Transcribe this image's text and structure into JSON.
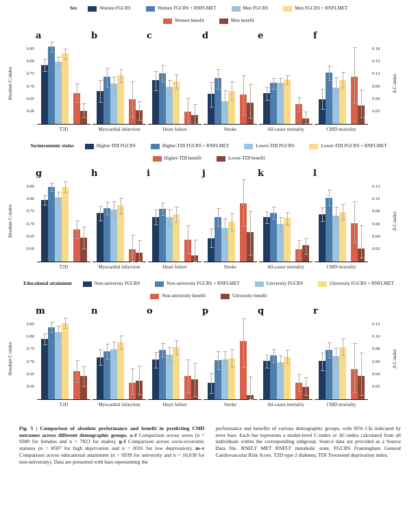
{
  "chart_data": {
    "type": "bar",
    "title": "Fig. 5 | Comparison of absolute performance and benefit in predicting CMD outcomes across different demographic groups.",
    "left_axis_range": [
      0.55,
      0.875
    ],
    "colors": {
      "series": [
        "#1e3a5f",
        "#4d7ead",
        "#9cc4de",
        "#f9db87"
      ],
      "benefit": [
        "#d9604a",
        "#8a4637"
      ],
      "error_bar": "#b3a8a3",
      "axis": "#151515"
    },
    "rows": [
      {
        "group_label": "Sex",
        "letters": [
          "a",
          "b",
          "c",
          "d",
          "e",
          "f"
        ],
        "legend_series": [
          "Women FGCRS",
          "Women FGCRS + RNFLMET",
          "Men FGCRS",
          "Men FGCRS + RNFLMET"
        ],
        "legend_benefit": [
          "Women benefit",
          "Men benefit"
        ],
        "left_axis_label": "Absolute C-index",
        "right_axis_label": "Δ C-index",
        "left_ticks": [
          0.85,
          0.8,
          0.75,
          0.7,
          0.65,
          0.6
        ],
        "right_ticks": [
          0.18,
          0.15,
          0.12,
          0.09,
          0.06,
          0.03
        ],
        "charts": [
          {
            "outcome": "T2D",
            "values": [
              0.788,
              0.86,
              0.8,
              0.833
            ],
            "ci": [
              [
                0.763,
                0.813
              ],
              [
                0.84,
                0.88
              ],
              [
                0.78,
                0.82
              ],
              [
                0.813,
                0.853
              ]
            ],
            "benefit": [
              0.075,
              0.032
            ],
            "benefit_ci": [
              [
                0.053,
                0.097
              ],
              [
                0.016,
                0.05
              ]
            ]
          },
          {
            "outcome": "Myocardial infarction",
            "values": [
              0.682,
              0.74,
              0.712,
              0.745
            ],
            "ci": [
              [
                0.637,
                0.727
              ],
              [
                0.7,
                0.777
              ],
              [
                0.683,
                0.741
              ],
              [
                0.719,
                0.771
              ]
            ],
            "benefit": [
              0.059,
              0.033
            ],
            "benefit_ci": [
              [
                0.017,
                0.103
              ],
              [
                0.01,
                0.055
              ]
            ]
          },
          {
            "outcome": "Heart failure",
            "values": [
              0.725,
              0.755,
              0.698,
              0.72
            ],
            "ci": [
              [
                0.686,
                0.762
              ],
              [
                0.721,
                0.786
              ],
              [
                0.669,
                0.727
              ],
              [
                0.691,
                0.749
              ]
            ],
            "benefit": [
              0.03,
              0.022
            ],
            "benefit_ci": [
              [
                0.002,
                0.063
              ],
              [
                0.001,
                0.048
              ]
            ]
          },
          {
            "outcome": "Stroke",
            "values": [
              0.67,
              0.735,
              0.642,
              0.683
            ],
            "ci": [
              [
                0.62,
                0.717
              ],
              [
                0.69,
                0.77
              ],
              [
                0.6,
                0.685
              ],
              [
                0.645,
                0.72
              ]
            ],
            "benefit": [
              0.071,
              0.052
            ],
            "benefit_ci": [
              [
                0.021,
                0.117
              ],
              [
                0.015,
                0.096
              ]
            ]
          },
          {
            "outcome": "All-cause mortality",
            "values": [
              0.673,
              0.715,
              0.715,
              0.73
            ],
            "ci": [
              [
                0.647,
                0.7
              ],
              [
                0.69,
                0.735
              ],
              [
                0.692,
                0.735
              ],
              [
                0.71,
                0.745
              ]
            ],
            "benefit": [
              0.048,
              0.014
            ],
            "benefit_ci": [
              [
                0.03,
                0.064
              ],
              [
                0.001,
                0.03
              ]
            ]
          },
          {
            "outcome": "CMD mortality",
            "values": [
              0.648,
              0.757,
              0.695,
              0.727
            ],
            "ci": [
              [
                0.61,
                0.69
              ],
              [
                0.727,
                0.785
              ],
              [
                0.657,
                0.737
              ],
              [
                0.695,
                0.758
              ]
            ],
            "benefit": [
              0.114,
              0.044
            ],
            "benefit_ci": [
              [
                0.052,
                0.185
              ],
              [
                0.016,
                0.082
              ]
            ]
          }
        ]
      },
      {
        "group_label": "Socioeconomic status",
        "letters": [
          "g",
          "h",
          "i",
          "j",
          "k",
          "l"
        ],
        "legend_series": [
          "Higher-TDI FGCRS",
          "Higher-TDI FGCRS + RNFLMET",
          "Lower-TDI FGCRS",
          "Lower-TDI FGCRS + RNFLMET"
        ],
        "legend_benefit": [
          "Higher-TDI benefit",
          "Lower-TDI benefit"
        ],
        "left_axis_label": "Absolute C-index",
        "right_axis_label": "Δ C-index",
        "left_ticks": [
          0.85,
          0.8,
          0.75,
          0.7,
          0.65,
          0.6
        ],
        "right_ticks": [
          0.12,
          0.1,
          0.08,
          0.06,
          0.04,
          0.02
        ],
        "charts": [
          {
            "outcome": "T2D",
            "values": [
              0.798,
              0.85,
              0.808,
              0.85
            ],
            "ci": [
              [
                0.778,
                0.818
              ],
              [
                0.833,
                0.868
              ],
              [
                0.785,
                0.832
              ],
              [
                0.828,
                0.872
              ]
            ],
            "benefit": [
              0.052,
              0.039
            ],
            "benefit_ci": [
              [
                0.037,
                0.066
              ],
              [
                0.021,
                0.056
              ]
            ]
          },
          {
            "outcome": "Myocardial infarction",
            "values": [
              0.745,
              0.765,
              0.76,
              0.775
            ],
            "ci": [
              [
                0.716,
                0.773
              ],
              [
                0.74,
                0.79
              ],
              [
                0.727,
                0.792
              ],
              [
                0.742,
                0.806
              ]
            ],
            "benefit": [
              0.02,
              0.014
            ],
            "benefit_ci": [
              [
                0.0,
                0.043
              ],
              [
                0.0,
                0.034
              ]
            ]
          },
          {
            "outcome": "Heart failure",
            "values": [
              0.73,
              0.763,
              0.728,
              0.74
            ],
            "ci": [
              [
                0.7,
                0.758
              ],
              [
                0.737,
                0.788
              ],
              [
                0.697,
                0.76
              ],
              [
                0.71,
                0.77
              ]
            ],
            "benefit": [
              0.035,
              0.01
            ],
            "benefit_ci": [
              [
                0.013,
                0.058
              ],
              [
                0.0,
                0.035
              ]
            ]
          },
          {
            "outcome": "Stroke",
            "values": [
              0.645,
              0.73,
              0.685,
              0.71
            ],
            "ci": [
              [
                0.607,
                0.682
              ],
              [
                0.693,
                0.765
              ],
              [
                0.645,
                0.723
              ],
              [
                0.672,
                0.745
              ]
            ],
            "benefit": [
              0.094,
              0.047
            ],
            "benefit_ci": [
              [
                0.057,
                0.132
              ],
              [
                0.011,
                0.082
              ]
            ]
          },
          {
            "outcome": "All-cause mortality",
            "values": [
              0.728,
              0.746,
              0.702,
              0.725
            ],
            "ci": [
              [
                0.703,
                0.752
              ],
              [
                0.722,
                0.77
              ],
              [
                0.675,
                0.728
              ],
              [
                0.7,
                0.748
              ]
            ],
            "benefit": [
              0.02,
              0.026
            ],
            "benefit_ci": [
              [
                0.006,
                0.034
              ],
              [
                0.012,
                0.038
              ]
            ]
          },
          {
            "outcome": "CMD mortality",
            "values": [
              0.74,
              0.805,
              0.735,
              0.748
            ],
            "ci": [
              [
                0.712,
                0.768
              ],
              [
                0.775,
                0.838
              ],
              [
                0.7,
                0.77
              ],
              [
                0.717,
                0.78
              ]
            ],
            "benefit": [
              0.062,
              0.021
            ],
            "benefit_ci": [
              [
                0.031,
                0.097
              ],
              [
                0.007,
                0.058
              ]
            ]
          }
        ]
      },
      {
        "group_label": "Educational attainment",
        "letters": [
          "m",
          "n",
          "o",
          "p",
          "q",
          "r"
        ],
        "legend_series": [
          "Non-university FGCRS",
          "Non-university FGCRS + RNFLMET",
          "University FGCRS",
          "University FGCRS + RNFLMET"
        ],
        "legend_benefit": [
          "Non-university benefit",
          "University benefit"
        ],
        "left_axis_label": "Absolute C-index",
        "right_axis_label": "Δ C-index",
        "left_ticks": [
          0.85,
          0.8,
          0.75,
          0.7,
          0.65,
          0.6
        ],
        "right_ticks": [
          0.12,
          0.1,
          0.08,
          0.06,
          0.04,
          0.02
        ],
        "charts": [
          {
            "outcome": "T2D",
            "values": [
              0.792,
              0.84,
              0.82,
              0.857
            ],
            "ci": [
              [
                0.77,
                0.815
              ],
              [
                0.82,
                0.862
              ],
              [
                0.797,
                0.845
              ],
              [
                0.837,
                0.877
              ]
            ],
            "benefit": [
              0.045,
              0.038
            ],
            "benefit_ci": [
              [
                0.027,
                0.063
              ],
              [
                0.021,
                0.053
              ]
            ]
          },
          {
            "outcome": "Myocardial infarction",
            "values": [
              0.718,
              0.742,
              0.75,
              0.78
            ],
            "ci": [
              [
                0.687,
                0.75
              ],
              [
                0.713,
                0.772
              ],
              [
                0.72,
                0.78
              ],
              [
                0.752,
                0.807
              ]
            ],
            "benefit": [
              0.027,
              0.03
            ],
            "benefit_ci": [
              [
                0.009,
                0.05
              ],
              [
                0.008,
                0.054
              ]
            ]
          },
          {
            "outcome": "Heart failure",
            "values": [
              0.71,
              0.747,
              0.73,
              0.758
            ],
            "ci": [
              [
                0.678,
                0.74
              ],
              [
                0.72,
                0.775
              ],
              [
                0.7,
                0.76
              ],
              [
                0.733,
                0.787
              ]
            ],
            "benefit": [
              0.037,
              0.032
            ],
            "benefit_ci": [
              [
                0.011,
                0.064
              ],
              [
                0.004,
                0.058
              ]
            ]
          },
          {
            "outcome": "Stroke",
            "values": [
              0.616,
              0.708,
              0.71,
              0.716
            ],
            "ci": [
              [
                0.574,
                0.655
              ],
              [
                0.672,
                0.742
              ],
              [
                0.675,
                0.744
              ],
              [
                0.68,
                0.75
              ]
            ],
            "benefit": [
              0.094,
              0.007
            ],
            "benefit_ci": [
              [
                0.052,
                0.13
              ],
              [
                0.0,
                0.036
              ]
            ]
          },
          {
            "outcome": "All-cause mortality",
            "values": [
              0.703,
              0.726,
              0.7,
              0.722
            ],
            "ci": [
              [
                0.677,
                0.728
              ],
              [
                0.7,
                0.75
              ],
              [
                0.673,
                0.727
              ],
              [
                0.697,
                0.747
              ]
            ],
            "benefit": [
              0.026,
              0.02
            ],
            "benefit_ci": [
              [
                0.013,
                0.041
              ],
              [
                0.007,
                0.035
              ]
            ]
          },
          {
            "outcome": "CMD mortality",
            "values": [
              0.703,
              0.748,
              0.724,
              0.76
            ],
            "ci": [
              [
                0.667,
                0.738
              ],
              [
                0.718,
                0.778
              ],
              [
                0.69,
                0.757
              ],
              [
                0.725,
                0.795
              ]
            ],
            "benefit": [
              0.049,
              0.038
            ],
            "benefit_ci": [
              [
                0.011,
                0.09
              ],
              [
                0.007,
                0.075
              ]
            ]
          }
        ]
      }
    ],
    "caption": {
      "left": [
        {
          "t": "Fig. 5 | Comparison of absolute performance and benefit in predicting CMD outcomes across different demographic groups. ",
          "b": true
        },
        {
          "t": "a–f",
          "b": true
        },
        {
          "t": " Comparison across sexes (n = 9380 for females and n = 7823 for males). ",
          "b": false
        },
        {
          "t": "g–l",
          "b": true
        },
        {
          "t": " Comparison across socio-economic statuses (n = 8587 for high deprivation and n = 8591 for low deprivation). ",
          "b": false
        },
        {
          "t": "m–r",
          "b": true
        },
        {
          "t": " Comparison across educational attainment (n = 6939 for university and n = 10,038 for non-university). Data are presented with bars representing the",
          "b": false
        }
      ],
      "right": [
        {
          "t": "performance and benefits of various demographic groups, with 95% CIs indicated by error bars. Each bar represents a model-level C-index or ΔC-index calculated from all individuals within the corresponding subgroup. Source data are provided as a Source Data file. RNFLT MET RNFLT metabolic state, FGCRS Framingham General Cardiovascular Risk Score, T2D type 2 diabetes, TDI Townsend deprivation index.",
          "b": false
        }
      ]
    }
  }
}
